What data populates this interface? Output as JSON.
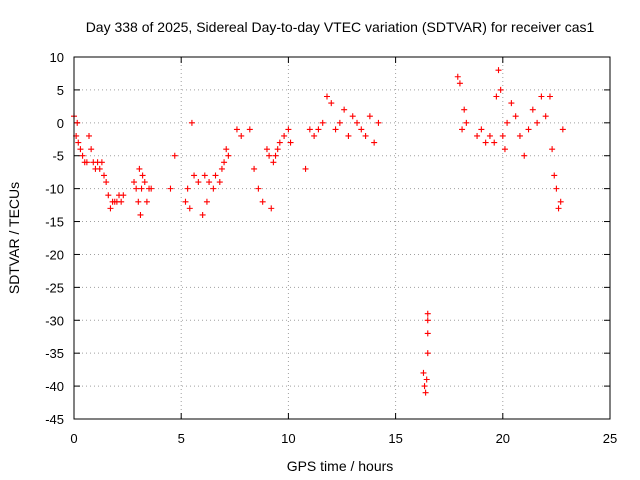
{
  "chart_data": {
    "type": "scatter",
    "title": "Day 338 of 2025, Sidereal Day-to-day VTEC variation (SDTVAR) for receiver cas1",
    "xlabel": "GPS time / hours",
    "ylabel": "SDTVAR / TECUs",
    "xlim": [
      0,
      25
    ],
    "ylim": [
      -45,
      10
    ],
    "xticks": [
      0,
      5,
      10,
      15,
      20,
      25
    ],
    "yticks": [
      10,
      5,
      0,
      -5,
      -10,
      -15,
      -20,
      -25,
      -30,
      -35,
      -40,
      -45
    ],
    "grid": true,
    "legend": "none",
    "marker": "+",
    "marker_color": "#ff0000",
    "series": [
      {
        "name": "cas1",
        "x": [
          0.0,
          0.1,
          0.15,
          0.2,
          0.3,
          0.4,
          0.5,
          0.6,
          0.7,
          0.8,
          0.9,
          1.0,
          1.1,
          1.2,
          1.3,
          1.4,
          1.5,
          1.6,
          1.7,
          1.8,
          1.9,
          2.0,
          2.1,
          2.2,
          2.3,
          2.8,
          2.9,
          3.0,
          3.05,
          3.1,
          3.15,
          3.2,
          3.3,
          3.4,
          3.5,
          3.6,
          4.5,
          4.7,
          5.2,
          5.3,
          5.4,
          5.5,
          5.6,
          5.8,
          6.0,
          6.1,
          6.2,
          6.3,
          6.5,
          6.6,
          6.8,
          6.9,
          7.0,
          7.1,
          7.2,
          7.6,
          7.8,
          8.2,
          8.4,
          8.6,
          8.8,
          9.0,
          9.1,
          9.2,
          9.3,
          9.4,
          9.5,
          9.6,
          9.8,
          10.0,
          10.1,
          10.8,
          11.0,
          11.2,
          11.4,
          11.6,
          11.8,
          12.0,
          12.2,
          12.4,
          12.6,
          12.8,
          13.0,
          13.2,
          13.4,
          13.6,
          13.8,
          14.0,
          14.2,
          16.3,
          16.35,
          16.4,
          16.45,
          16.5,
          16.5,
          16.5,
          16.5,
          17.9,
          18.0,
          18.1,
          18.2,
          18.3,
          18.8,
          19.0,
          19.2,
          19.4,
          19.6,
          19.7,
          19.8,
          19.9,
          20.0,
          20.1,
          20.2,
          20.4,
          20.6,
          20.8,
          21.0,
          21.2,
          21.4,
          21.6,
          21.8,
          22.0,
          22.2,
          22.3,
          22.4,
          22.5,
          22.6,
          22.7,
          22.8
        ],
        "y": [
          1,
          -2,
          0,
          -3,
          -4,
          -5,
          -6,
          -6,
          -2,
          -4,
          -6,
          -7,
          -6,
          -7,
          -6,
          -8,
          -9,
          -11,
          -13,
          -12,
          -12,
          -12,
          -11,
          -12,
          -11,
          -9,
          -10,
          -12,
          -7,
          -14,
          -10,
          -8,
          -9,
          -12,
          -10,
          -10,
          -10,
          -5,
          -12,
          -10,
          -13,
          0,
          -8,
          -9,
          -14,
          -8,
          -12,
          -9,
          -10,
          -8,
          -9,
          -7,
          -6,
          -4,
          -5,
          -1,
          -2,
          -1,
          -7,
          -10,
          -12,
          -4,
          -5,
          -13,
          -6,
          -5,
          -4,
          -3,
          -2,
          -1,
          -3,
          -7,
          -1,
          -2,
          -1,
          0,
          4,
          3,
          -1,
          0,
          2,
          -2,
          1,
          0,
          -1,
          -2,
          1,
          -3,
          0,
          -38,
          -40,
          -41,
          -39,
          -35,
          -32,
          -30,
          -29,
          7,
          6,
          -1,
          2,
          0,
          -2,
          -1,
          -3,
          -2,
          -3,
          4,
          8,
          5,
          -2,
          -4,
          0,
          3,
          1,
          -2,
          -5,
          -1,
          2,
          0,
          4,
          1,
          4,
          -4,
          -8,
          -10,
          -13,
          -12,
          -1
        ]
      }
    ]
  }
}
